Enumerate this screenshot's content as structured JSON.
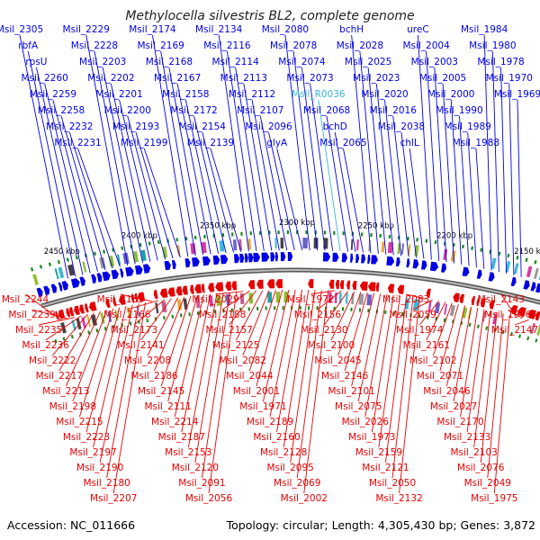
{
  "title": "Methylocella silvestris BL2, complete genome",
  "footer": {
    "accession": "Accession: NC_011666",
    "topology": "Topology: circular; Length: 4,305,430 bp; Genes: 3,872"
  },
  "colors": {
    "forward": "#0000e6",
    "reverse": "#e60000",
    "rna": "#3ab8d9",
    "backbone": "#888888",
    "tick": "#1a8a1a"
  },
  "kbp_marks": [
    "2450 kbp",
    "2400 kbp",
    "2350 kbp",
    "2300 kbp",
    "2250 kbp",
    "2200 kbp",
    "2150 kbp"
  ],
  "top_labels": [
    {
      "text": "Msil_2305",
      "type": "gene"
    },
    {
      "text": "rbfA",
      "type": "gene"
    },
    {
      "text": "rpsU",
      "type": "gene"
    },
    {
      "text": "Msil_2260",
      "type": "gene"
    },
    {
      "text": "Msil_2259",
      "type": "gene"
    },
    {
      "text": "Msil_2258",
      "type": "gene"
    },
    {
      "text": "Msil_2232",
      "type": "gene"
    },
    {
      "text": "Msil_2231",
      "type": "gene"
    },
    {
      "text": "Msil_2229",
      "type": "gene"
    },
    {
      "text": "Msil_2228",
      "type": "gene"
    },
    {
      "text": "Msil_2203",
      "type": "gene"
    },
    {
      "text": "Msil_2202",
      "type": "gene"
    },
    {
      "text": "Msil_2201",
      "type": "gene"
    },
    {
      "text": "Msil_2200",
      "type": "gene"
    },
    {
      "text": "Msil_2193",
      "type": "gene"
    },
    {
      "text": "Msil_2199",
      "type": "gene"
    },
    {
      "text": "Msil_2174",
      "type": "gene"
    },
    {
      "text": "Msil_2169",
      "type": "gene"
    },
    {
      "text": "Msil_2168",
      "type": "gene"
    },
    {
      "text": "Msil_2167",
      "type": "gene"
    },
    {
      "text": "Msil_2158",
      "type": "gene"
    },
    {
      "text": "Msil_2172",
      "type": "gene"
    },
    {
      "text": "Msil_2154",
      "type": "gene"
    },
    {
      "text": "Msil_2139",
      "type": "gene"
    },
    {
      "text": "Msil_2134",
      "type": "gene"
    },
    {
      "text": "Msil_2116",
      "type": "gene"
    },
    {
      "text": "Msil_2114",
      "type": "gene"
    },
    {
      "text": "Msil_2113",
      "type": "gene"
    },
    {
      "text": "Msil_2112",
      "type": "gene"
    },
    {
      "text": "Msil_2107",
      "type": "gene"
    },
    {
      "text": "Msil_2096",
      "type": "gene"
    },
    {
      "text": "glyA",
      "type": "gene"
    },
    {
      "text": "Msil_2080",
      "type": "gene"
    },
    {
      "text": "Msil_2078",
      "type": "gene"
    },
    {
      "text": "Msil_2074",
      "type": "gene"
    },
    {
      "text": "Msil_2073",
      "type": "gene"
    },
    {
      "text": "Msil_R0036",
      "type": "rna"
    },
    {
      "text": "Msil_2068",
      "type": "gene"
    },
    {
      "text": "bchD",
      "type": "gene"
    },
    {
      "text": "Msil_2065",
      "type": "gene"
    },
    {
      "text": "bchH",
      "type": "gene"
    },
    {
      "text": "Msil_2028",
      "type": "gene"
    },
    {
      "text": "Msil_2025",
      "type": "gene"
    },
    {
      "text": "Msil_2023",
      "type": "gene"
    },
    {
      "text": "Msil_2020",
      "type": "gene"
    },
    {
      "text": "Msil_2016",
      "type": "gene"
    },
    {
      "text": "Msil_2038",
      "type": "gene"
    },
    {
      "text": "chlL",
      "type": "gene"
    },
    {
      "text": "ureC",
      "type": "gene"
    },
    {
      "text": "Msil_2004",
      "type": "gene"
    },
    {
      "text": "Msil_2003",
      "type": "gene"
    },
    {
      "text": "Msil_2005",
      "type": "gene"
    },
    {
      "text": "Msil_2000",
      "type": "gene"
    },
    {
      "text": "Msil_1990",
      "type": "gene"
    },
    {
      "text": "Msil_1989",
      "type": "gene"
    },
    {
      "text": "Msil_1988",
      "type": "gene"
    },
    {
      "text": "Msil_1984",
      "type": "gene"
    },
    {
      "text": "Msil_1980",
      "type": "gene"
    },
    {
      "text": "Msil_1978",
      "type": "gene"
    },
    {
      "text": "Msil_1970",
      "type": "gene"
    },
    {
      "text": "Msil_1969",
      "type": "gene"
    }
  ],
  "bottom_labels": [
    "Msil_2244",
    "Msil_2239",
    "Msil_2235",
    "Msil_2236",
    "Msil_2222",
    "Msil_2217",
    "Msil_2213",
    "Msil_2198",
    "Msil_2215",
    "Msil_2223",
    "Msil_2197",
    "Msil_2190",
    "Msil_2180",
    "Msil_2207",
    "Msil_2185",
    "Msil_2166",
    "Msil_2173",
    "Msil_2141",
    "Msil_2208",
    "Msil_2186",
    "Msil_2145",
    "Msil_2111",
    "Msil_2214",
    "Msil_2187",
    "Msil_2153",
    "Msil_2120",
    "Msil_2091",
    "Msil_2056",
    "Msil_2029",
    "Msil_2188",
    "Msil_2157",
    "Msil_2125",
    "Msil_2082",
    "Msil_2044",
    "Msil_2001",
    "Msil_1971",
    "Msil_2189",
    "Msil_2160",
    "Msil_2128",
    "Msil_2095",
    "Msil_2069",
    "Msil_2002",
    "Msil_1972",
    "Msil_2156",
    "Msil_2130",
    "Msil_2100",
    "Msil_2045",
    "Msil_2146",
    "Msil_2101",
    "Msil_2075",
    "Msil_2026",
    "Msil_1973",
    "Msil_2159",
    "Msil_2121",
    "Msil_2050",
    "Msil_2132",
    "Msil_2083",
    "Msil_2059",
    "Msil_1974",
    "Msil_2161",
    "Msil_2102",
    "Msil_2071",
    "Msil_2046",
    "Msil_2027",
    "Msil_2170",
    "Msil_2133",
    "Msil_2103",
    "Msil_2076",
    "Msil_2049",
    "Msil_1975",
    "Msil_2143",
    "Msil_1976",
    "Msil_2147"
  ]
}
